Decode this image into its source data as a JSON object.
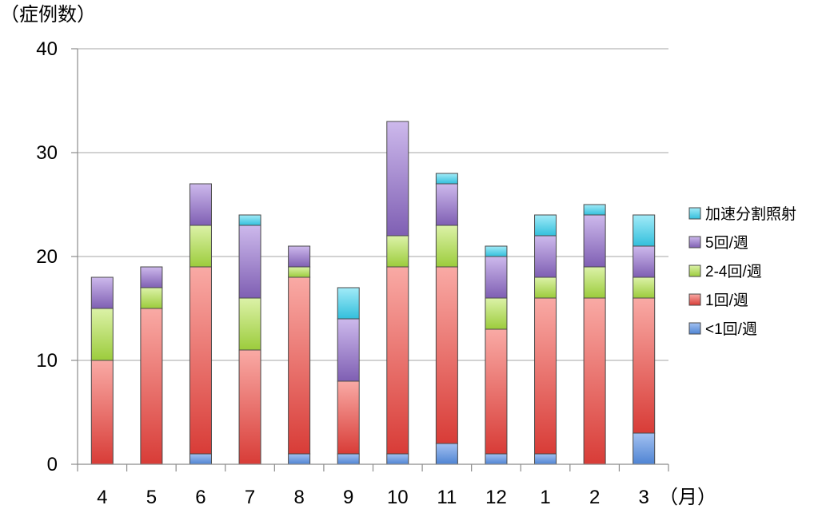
{
  "chart_data": {
    "type": "bar",
    "stacked": true,
    "categories": [
      "4",
      "5",
      "6",
      "7",
      "8",
      "9",
      "10",
      "11",
      "12",
      "1",
      "2",
      "3"
    ],
    "series": [
      {
        "name": "<1回/週",
        "values": [
          0,
          0,
          1,
          0,
          1,
          1,
          1,
          2,
          1,
          1,
          0,
          3
        ],
        "color": "#4f84d3",
        "color_light": "#a3c1f1"
      },
      {
        "name": "1回/週",
        "values": [
          10,
          15,
          18,
          11,
          17,
          7,
          18,
          17,
          12,
          15,
          16,
          13
        ],
        "color": "#d83c37",
        "color_light": "#f9aaa5"
      },
      {
        "name": "2-4回/週",
        "values": [
          5,
          2,
          4,
          5,
          1,
          0,
          3,
          4,
          3,
          2,
          3,
          2
        ],
        "color": "#9ccc3c",
        "color_light": "#dcf2a8"
      },
      {
        "name": "5回/週",
        "values": [
          3,
          2,
          4,
          7,
          2,
          6,
          11,
          4,
          4,
          4,
          5,
          3
        ],
        "color": "#7f5fb3",
        "color_light": "#cdb9ec"
      },
      {
        "name": "加速分割照射",
        "values": [
          0,
          0,
          0,
          1,
          0,
          3,
          0,
          1,
          1,
          2,
          1,
          3
        ],
        "color": "#33bfdc",
        "color_light": "#a2ebf8"
      }
    ],
    "ylabel": "（症例数）",
    "xlabel": "（月）",
    "ylim": [
      0,
      40
    ],
    "yticks": [
      0,
      10,
      20,
      30,
      40
    ],
    "grid": true,
    "legend": "right"
  }
}
